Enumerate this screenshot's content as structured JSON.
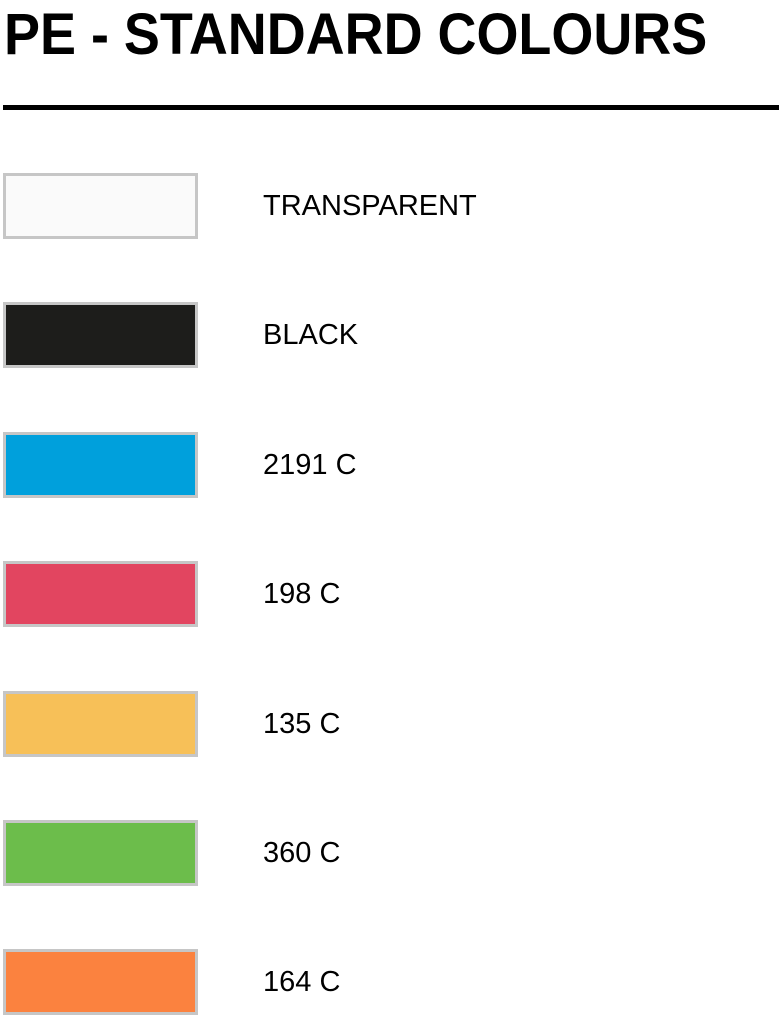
{
  "title": "PE - STANDARD COLOURS",
  "colours": [
    {
      "label": "TRANSPARENT",
      "color": "#fafafa"
    },
    {
      "label": "BLACK",
      "color": "#1d1d1b"
    },
    {
      "label": "2191 C",
      "color": "#00a0dc"
    },
    {
      "label": "198 C",
      "color": "#e24560"
    },
    {
      "label": "135 C",
      "color": "#f7c058"
    },
    {
      "label": "360 C",
      "color": "#6cbd4b"
    },
    {
      "label": "164 C",
      "color": "#fb823f"
    }
  ]
}
